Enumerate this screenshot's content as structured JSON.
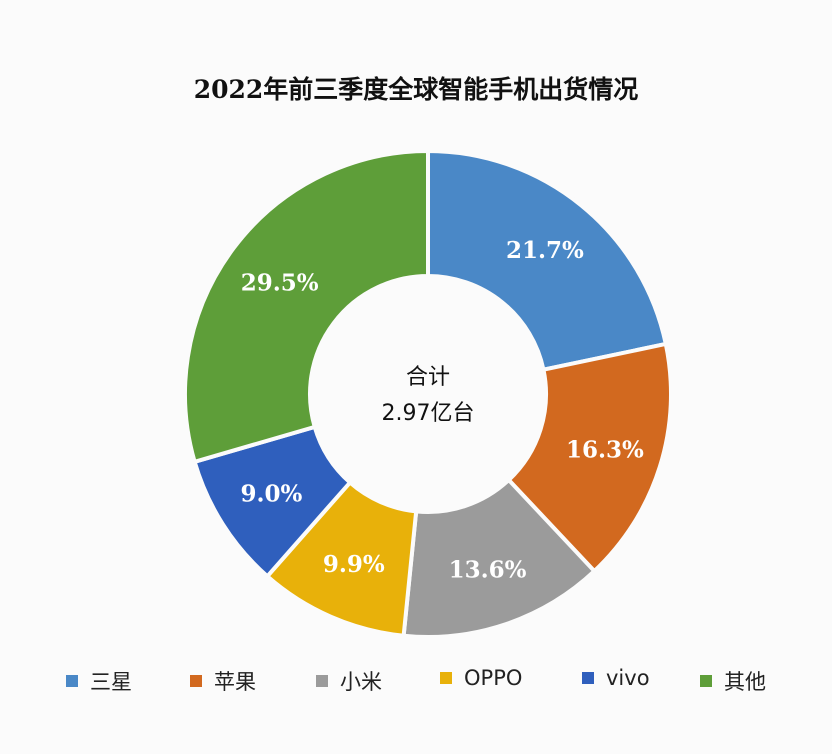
{
  "chart_data": {
    "type": "pie",
    "variant": "donut",
    "title": "2022年前三季度全球智能手机出货情况",
    "center_label": {
      "line1": "合计",
      "line2": "2.97亿台"
    },
    "categories": [
      "三星",
      "苹果",
      "小米",
      "OPPO",
      "vivo",
      "其他"
    ],
    "values": [
      21.7,
      16.3,
      13.6,
      9.9,
      9.0,
      29.5
    ],
    "data_labels": [
      "21.7%",
      "16.3%",
      "13.6%",
      "9.9%",
      "9.0%",
      "29.5%"
    ],
    "colors": [
      "#4a88c7",
      "#d2691f",
      "#9b9b9b",
      "#e8b10a",
      "#2f5fbd",
      "#5e9e39"
    ],
    "legend_position": "bottom",
    "start": "top, clockwise"
  }
}
